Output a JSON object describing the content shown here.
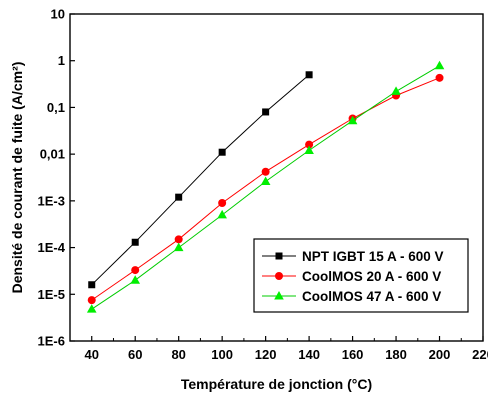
{
  "chart_data": {
    "type": "line",
    "xlabel": "Température de jonction (°C)",
    "ylabel": "Densité de courant de fuite (A/cm²)",
    "y_scale": "log",
    "xlim": [
      30,
      220
    ],
    "ylim": [
      1e-06,
      10
    ],
    "x_ticks": [
      40,
      60,
      80,
      100,
      120,
      140,
      160,
      180,
      200,
      220
    ],
    "x_tick_labels": [
      "40",
      "60",
      "80",
      "100",
      "120",
      "140",
      "160",
      "180",
      "200",
      "220"
    ],
    "y_ticks": [
      1e-06,
      1e-05,
      0.0001,
      0.001,
      0.01,
      0.1,
      1,
      10
    ],
    "y_tick_labels": [
      "1E-6",
      "1E-5",
      "1E-4",
      "1E-3",
      "0,01",
      "0,1",
      "1",
      "10"
    ],
    "grid": false,
    "legend_position": "bottom-right",
    "series": [
      {
        "name": "NPT IGBT 15 A - 600 V",
        "marker": "square",
        "color": "#000000",
        "line_color": "#000000",
        "x": [
          40,
          60,
          80,
          100,
          120,
          140
        ],
        "y": [
          1.6e-05,
          0.00013,
          0.0012,
          0.011,
          0.08,
          0.5
        ]
      },
      {
        "name": "CoolMOS 20 A - 600 V",
        "marker": "circle",
        "color": "#ff0000",
        "line_color": "#ff0000",
        "x": [
          40,
          60,
          80,
          100,
          120,
          140,
          160,
          180,
          200
        ],
        "y": [
          7.5e-06,
          3.3e-05,
          0.00015,
          0.0009,
          0.0042,
          0.016,
          0.058,
          0.18,
          0.43
        ]
      },
      {
        "name": "CoolMOS 47 A - 600 V",
        "marker": "triangle",
        "color": "#00ee00",
        "line_color": "#00cc00",
        "x": [
          40,
          60,
          80,
          100,
          120,
          140,
          160,
          180,
          200
        ],
        "y": [
          4.8e-06,
          2e-05,
          0.0001,
          0.0005,
          0.0026,
          0.012,
          0.052,
          0.22,
          0.78
        ]
      }
    ]
  }
}
